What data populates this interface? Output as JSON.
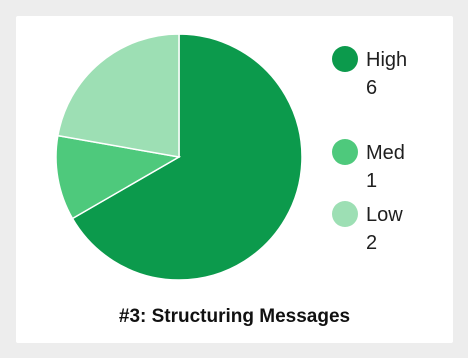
{
  "chart_data": {
    "type": "pie",
    "title": "#3: Structuring Messages",
    "slices": [
      {
        "label": "High",
        "value": 6,
        "color": "#0c9a4c"
      },
      {
        "label": "Med",
        "value": 1,
        "color": "#4ec97c"
      },
      {
        "label": "Low",
        "value": 2,
        "color": "#9ddfb4"
      }
    ],
    "legend_position": "right"
  }
}
